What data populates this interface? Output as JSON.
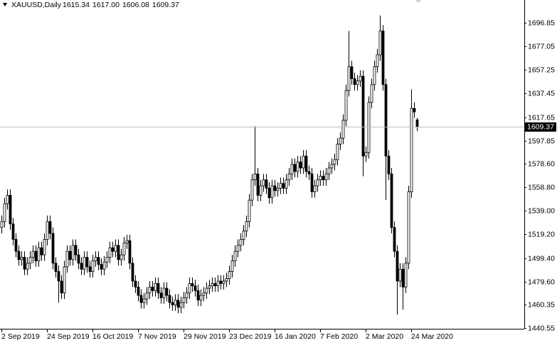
{
  "chart_data": {
    "type": "candlestick",
    "header": {
      "symbol": "XAUUSD,Daily",
      "ohlc": [
        1615.34,
        {
          "value": 1617,
          "label": "1617.00"
        },
        1606.08,
        1609.37
      ]
    },
    "categories": [
      "2 Sep 2019",
      null,
      null,
      null,
      null,
      null,
      null,
      null,
      null,
      null,
      null,
      null,
      null,
      null,
      null,
      null,
      "24 Sep 2019",
      null,
      null,
      null,
      null,
      null,
      null,
      null,
      null,
      null,
      null,
      null,
      null,
      null,
      null,
      null,
      "16 Oct 2019",
      null,
      null,
      null,
      null,
      null,
      null,
      null,
      null,
      null,
      null,
      null,
      null,
      null,
      null,
      null,
      "7 Nov 2019",
      null,
      null,
      null,
      null,
      null,
      null,
      null,
      null,
      null,
      null,
      null,
      null,
      null,
      null,
      null,
      "29 Nov 2019",
      null,
      null,
      null,
      null,
      null,
      null,
      null,
      null,
      null,
      null,
      null,
      null,
      null,
      null,
      null,
      "23 Dec 2019",
      null,
      null,
      null,
      null,
      null,
      null,
      null,
      null,
      null,
      null,
      null,
      null,
      null,
      null,
      null,
      "16 Jan 2020",
      null,
      null,
      null,
      null,
      null,
      null,
      null,
      null,
      null,
      null,
      null,
      null,
      null,
      null,
      null,
      "7 Feb 2020",
      null,
      null,
      null,
      null,
      null,
      null,
      null,
      null,
      null,
      null,
      null,
      null,
      null,
      null,
      null,
      "2 Mar 2020",
      null,
      null,
      null,
      null,
      null,
      null,
      null,
      null,
      null,
      null,
      null,
      null,
      null,
      null,
      null,
      "24 Mar 2020",
      null,
      null
    ],
    "open": [
      1525,
      1530,
      1545,
      1552,
      1528,
      1515,
      1505,
      1498,
      1500,
      1490,
      1495,
      1500,
      1505,
      1497,
      1508,
      1502,
      1515,
      1530,
      1520,
      1495,
      1488,
      1480,
      1470,
      1492,
      1505,
      1498,
      1510,
      1502,
      1495,
      1490,
      1500,
      1492,
      1488,
      1497,
      1500,
      1494,
      1490,
      1496,
      1500,
      1508,
      1505,
      1510,
      1498,
      1502,
      1512,
      1514,
      1495,
      1480,
      1475,
      1468,
      1462,
      1465,
      1470,
      1475,
      1472,
      1478,
      1470,
      1466,
      1474,
      1468,
      1462,
      1460,
      1464,
      1458,
      1462,
      1466,
      1470,
      1478,
      1476,
      1472,
      1464,
      1468,
      1470,
      1474,
      1476,
      1478,
      1476,
      1480,
      1478,
      1480,
      1482,
      1488,
      1497,
      1505,
      1510,
      1515,
      1522,
      1530,
      1548,
      1565,
      1570,
      1552,
      1560,
      1565,
      1558,
      1550,
      1560,
      1556,
      1558,
      1562,
      1558,
      1565,
      1570,
      1578,
      1572,
      1580,
      1575,
      1585,
      1572,
      1570,
      1555,
      1560,
      1565,
      1568,
      1565,
      1570,
      1575,
      1578,
      1582,
      1595,
      1600,
      1615,
      1640,
      1660,
      1650,
      1645,
      1648,
      1652,
      1585,
      1588,
      1630,
      1645,
      1660,
      1670,
      1690,
      1645,
      1585,
      1570,
      1525,
      1505,
      1480,
      1490,
      1475,
      1495,
      1555,
      1625,
      1615.34
    ],
    "high": [
      1535,
      1550,
      1557,
      1557,
      1533,
      1520,
      1510,
      1505,
      1505,
      1500,
      1505,
      1510,
      1510,
      1513,
      1513,
      1520,
      1535,
      1535,
      1525,
      1500,
      1493,
      1485,
      1497,
      1510,
      1510,
      1515,
      1515,
      1507,
      1500,
      1505,
      1505,
      1497,
      1502,
      1505,
      1505,
      1499,
      1501,
      1505,
      1513,
      1513,
      1515,
      1515,
      1507,
      1517,
      1519,
      1519,
      1500,
      1485,
      1480,
      1473,
      1470,
      1475,
      1480,
      1480,
      1483,
      1483,
      1475,
      1479,
      1479,
      1473,
      1467,
      1469,
      1469,
      1467,
      1471,
      1475,
      1483,
      1483,
      1481,
      1477,
      1473,
      1475,
      1479,
      1481,
      1483,
      1483,
      1485,
      1485,
      1485,
      1487,
      1493,
      1502,
      1510,
      1515,
      1520,
      1527,
      1535,
      1553,
      1570,
      1610,
      1575,
      1565,
      1570,
      1570,
      1563,
      1565,
      1565,
      1563,
      1567,
      1567,
      1570,
      1575,
      1583,
      1583,
      1585,
      1585,
      1590,
      1590,
      1577,
      1575,
      1565,
      1570,
      1573,
      1573,
      1575,
      1580,
      1583,
      1587,
      1600,
      1605,
      1620,
      1645,
      1690,
      1665,
      1655,
      1653,
      1657,
      1657,
      1593,
      1635,
      1650,
      1665,
      1675,
      1703,
      1695,
      1650,
      1590,
      1575,
      1530,
      1510,
      1495,
      1495,
      1500,
      1560,
      1641,
      1630,
      1617
    ],
    "low": [
      1520,
      1525,
      1540,
      1523,
      1510,
      1500,
      1493,
      1493,
      1485,
      1485,
      1490,
      1495,
      1492,
      1492,
      1497,
      1497,
      1510,
      1515,
      1490,
      1483,
      1462,
      1465,
      1465,
      1487,
      1493,
      1493,
      1497,
      1490,
      1485,
      1485,
      1487,
      1483,
      1483,
      1492,
      1489,
      1485,
      1485,
      1491,
      1495,
      1500,
      1500,
      1493,
      1493,
      1497,
      1507,
      1490,
      1475,
      1470,
      1463,
      1457,
      1457,
      1460,
      1465,
      1467,
      1467,
      1465,
      1461,
      1461,
      1463,
      1457,
      1455,
      1455,
      1453,
      1453,
      1457,
      1461,
      1465,
      1471,
      1467,
      1459,
      1459,
      1463,
      1465,
      1469,
      1471,
      1471,
      1471,
      1473,
      1473,
      1475,
      1477,
      1483,
      1492,
      1500,
      1505,
      1510,
      1517,
      1525,
      1543,
      1560,
      1547,
      1547,
      1555,
      1553,
      1545,
      1545,
      1551,
      1551,
      1553,
      1553,
      1553,
      1560,
      1565,
      1567,
      1567,
      1570,
      1570,
      1567,
      1565,
      1550,
      1550,
      1555,
      1560,
      1560,
      1560,
      1565,
      1570,
      1573,
      1577,
      1590,
      1595,
      1610,
      1635,
      1645,
      1640,
      1640,
      1643,
      1568,
      1580,
      1583,
      1625,
      1640,
      1655,
      1665,
      1640,
      1548,
      1565,
      1520,
      1500,
      1452,
      1475,
      1456,
      1470,
      1490,
      1550,
      1617,
      1606.08
    ],
    "close": [
      1530,
      1545,
      1552,
      1528,
      1515,
      1505,
      1498,
      1500,
      1490,
      1495,
      1500,
      1505,
      1497,
      1508,
      1502,
      1515,
      1530,
      1520,
      1495,
      1488,
      1480,
      1470,
      1492,
      1505,
      1498,
      1510,
      1502,
      1495,
      1490,
      1500,
      1492,
      1488,
      1497,
      1500,
      1494,
      1490,
      1496,
      1500,
      1508,
      1505,
      1510,
      1498,
      1502,
      1512,
      1514,
      1495,
      1480,
      1475,
      1468,
      1462,
      1465,
      1470,
      1475,
      1472,
      1478,
      1470,
      1466,
      1474,
      1468,
      1462,
      1460,
      1464,
      1458,
      1462,
      1466,
      1470,
      1478,
      1476,
      1472,
      1464,
      1468,
      1470,
      1474,
      1476,
      1478,
      1476,
      1480,
      1478,
      1480,
      1482,
      1488,
      1497,
      1505,
      1510,
      1515,
      1522,
      1530,
      1548,
      1565,
      1570,
      1552,
      1560,
      1565,
      1558,
      1550,
      1560,
      1556,
      1558,
      1562,
      1558,
      1565,
      1570,
      1578,
      1572,
      1580,
      1575,
      1585,
      1572,
      1570,
      1555,
      1560,
      1565,
      1568,
      1565,
      1570,
      1575,
      1578,
      1582,
      1595,
      1600,
      1615,
      1640,
      1660,
      1650,
      1645,
      1648,
      1652,
      1585,
      1588,
      1630,
      1645,
      1660,
      1670,
      1690,
      1645,
      1585,
      1570,
      1525,
      1505,
      1480,
      1490,
      1475,
      1495,
      1555,
      1625,
      1622,
      1609.37
    ],
    "up_color": "#ffffff",
    "down_color": "#000000",
    "wick_color": "#000000",
    "ylim": [
      1439.95,
      1716.0
    ],
    "yticks": [
      1440.55,
      1460.35,
      {
        "value": 1479.6,
        "label": "1479.60"
      },
      {
        "value": 1499.4,
        "label": "1499.40"
      },
      {
        "value": 1519.2,
        "label": "1519.20"
      },
      {
        "value": 1539,
        "label": "1539.00"
      },
      {
        "value": 1558.8,
        "label": "1558.80"
      },
      {
        "value": 1578.6,
        "label": "1578.60"
      },
      1597.85,
      1617.65,
      1637.45,
      1657.25,
      1677.05,
      1696.85
    ]
  }
}
